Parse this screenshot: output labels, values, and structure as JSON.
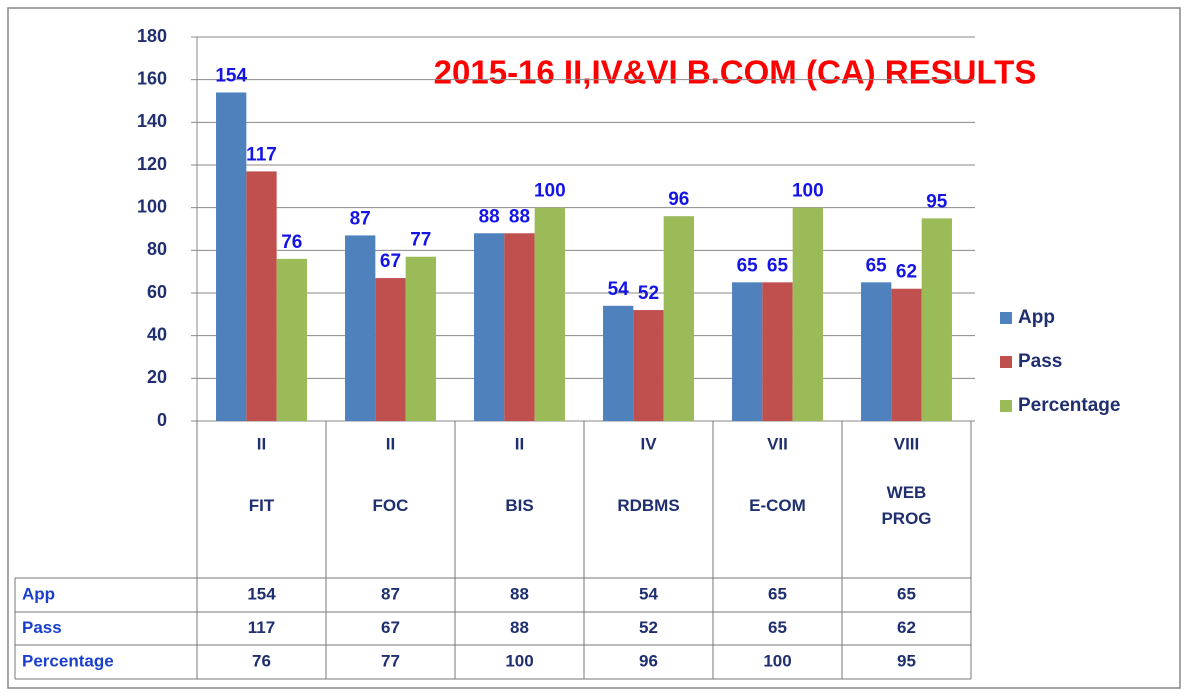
{
  "chart_data": {
    "type": "bar",
    "title": "2015-16 II,IV&VI B.COM (CA) RESULTS",
    "categories": [
      [
        "II",
        "FIT"
      ],
      [
        "II",
        "FOC"
      ],
      [
        "II",
        "BIS"
      ],
      [
        "IV",
        "RDBMS"
      ],
      [
        "VII",
        "E-COM"
      ],
      [
        "VIII",
        "WEB PROG"
      ]
    ],
    "series": [
      {
        "name": "App",
        "color": "#4f81bd",
        "values": [
          154,
          87,
          88,
          54,
          65,
          65
        ]
      },
      {
        "name": "Pass",
        "color": "#c0504d",
        "values": [
          117,
          67,
          88,
          52,
          65,
          62
        ]
      },
      {
        "name": "Percentage",
        "color": "#9bbb59",
        "values": [
          76,
          77,
          100,
          96,
          100,
          95
        ]
      }
    ],
    "ylim": [
      0,
      180
    ],
    "yticks": [
      0,
      20,
      40,
      60,
      80,
      100,
      120,
      140,
      160,
      180
    ],
    "grid": true,
    "legend": "right",
    "data_table": true
  }
}
